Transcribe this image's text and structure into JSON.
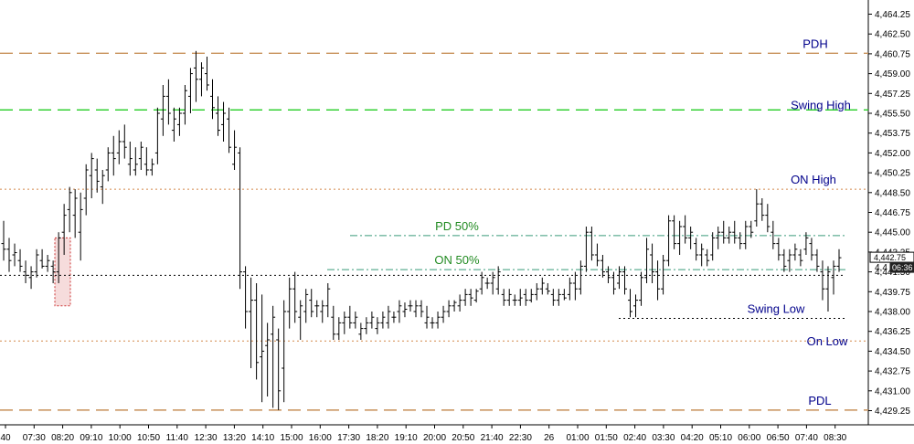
{
  "chart_data": {
    "type": "ohlc",
    "ylim": [
      4428.0,
      4465.5
    ],
    "y_ticks": [
      "4,464.25",
      "4,462.50",
      "4,460.75",
      "4,459.00",
      "4,457.25",
      "4,455.50",
      "4,453.75",
      "4,452.00",
      "4,450.25",
      "4,448.50",
      "4,446.75",
      "4,445.00",
      "4,443.25",
      "4,441.50",
      "4,439.75",
      "4,438.00",
      "4,436.25",
      "4,434.50",
      "4,432.75",
      "4,431.00",
      "4,429.25"
    ],
    "x_ticks": [
      "40",
      "07:30",
      "08:20",
      "09:10",
      "10:00",
      "10:50",
      "11:40",
      "12:30",
      "13:20",
      "14:10",
      "15:00",
      "16:00",
      "17:30",
      "18:20",
      "19:10",
      "20:00",
      "20:50",
      "21:40",
      "22:30",
      "26",
      "01:00",
      "01:50",
      "02:40",
      "03:30",
      "04:20",
      "05:10",
      "06:00",
      "06:50",
      "07:40",
      "08:30"
    ],
    "last_price_label": "4,442.75",
    "timer_label": "06:36",
    "timer_prefix": "4,4",
    "levels": [
      {
        "label": "PDH",
        "value": 4460.8,
        "color": "#c8915a",
        "style": "long-dash",
        "label_color": "#00008b"
      },
      {
        "label": "Swing High",
        "value": 4455.8,
        "color": "#22cc22",
        "style": "long-dash",
        "label_color": "#00008b"
      },
      {
        "label": "ON High",
        "value": 4448.8,
        "color": "#d4884a",
        "style": "dotted",
        "label_color": "#00008b"
      },
      {
        "label": "PD 50%",
        "value": 4444.7,
        "color": "#3a9a7a",
        "style": "dash-dot",
        "label_color": "#228b22"
      },
      {
        "label": "ON 50%",
        "value": 4441.7,
        "color": "#3a9a7a",
        "style": "dash-dot",
        "label_color": "#228b22"
      },
      {
        "label": "",
        "value": 4441.2,
        "color": "#000000",
        "style": "dotted",
        "label_color": "#000000"
      },
      {
        "label": "Swing Low",
        "value": 4437.4,
        "color": "#000000",
        "style": "dotted",
        "label_color": "#00008b"
      },
      {
        "label": "On Low",
        "value": 4435.4,
        "color": "#d4884a",
        "style": "dotted",
        "label_color": "#00008b"
      },
      {
        "label": "PDL",
        "value": 4429.3,
        "color": "#c8915a",
        "style": "long-dash",
        "label_color": "#00008b"
      }
    ],
    "bars": [
      [
        4444.0,
        4446.0,
        4442.5,
        4443.5
      ],
      [
        4443.5,
        4444.5,
        4441.5,
        4442.5
      ],
      [
        4443.0,
        4444.0,
        4442.0,
        4443.2
      ],
      [
        4442.5,
        4443.5,
        4441.5,
        4442.0
      ],
      [
        4441.5,
        4442.5,
        4440.5,
        4441.2
      ],
      [
        4441.0,
        4442.0,
        4440.0,
        4441.5
      ],
      [
        4441.5,
        4443.5,
        4441.0,
        4443.0
      ],
      [
        4442.5,
        4443.5,
        4441.8,
        4442.0
      ],
      [
        4442.0,
        4443.0,
        4441.5,
        4442.5
      ],
      [
        4442.0,
        4442.5,
        4440.5,
        4441.5
      ],
      [
        4441.5,
        4445.0,
        4440.5,
        4444.5
      ],
      [
        4445.0,
        4447.5,
        4443.0,
        4446.5
      ],
      [
        4447.0,
        4449.0,
        4445.0,
        4448.5
      ],
      [
        4446.5,
        4448.8,
        4444.5,
        4448.0
      ],
      [
        4445.0,
        4448.5,
        4442.5,
        4447.0
      ],
      [
        4448.0,
        4451.0,
        4446.5,
        4450.5
      ],
      [
        4450.0,
        4452.0,
        4448.0,
        4451.5
      ],
      [
        4450.5,
        4451.5,
        4448.5,
        4449.5
      ],
      [
        4449.0,
        4450.5,
        4447.5,
        4450.0
      ],
      [
        4450.5,
        4452.5,
        4449.5,
        4452.0
      ],
      [
        4452.0,
        4453.5,
        4450.0,
        4451.5
      ],
      [
        4452.0,
        4454.0,
        4451.0,
        4453.0
      ],
      [
        4453.0,
        4454.5,
        4451.5,
        4452.5
      ],
      [
        4451.0,
        4453.0,
        4450.0,
        4451.5
      ],
      [
        4450.5,
        4452.5,
        4450.0,
        4451.0
      ],
      [
        4451.5,
        4453.0,
        4450.5,
        4452.5
      ],
      [
        4451.0,
        4452.5,
        4450.0,
        4450.5
      ],
      [
        4450.5,
        4451.5,
        4450.0,
        4451.0
      ],
      [
        4452.0,
        4456.0,
        4451.0,
        4455.5
      ],
      [
        4455.0,
        4458.0,
        4453.5,
        4457.0
      ],
      [
        4457.0,
        4458.5,
        4454.5,
        4455.5
      ],
      [
        4454.0,
        4456.0,
        4453.0,
        4455.0
      ],
      [
        4454.5,
        4456.0,
        4453.5,
        4455.5
      ],
      [
        4455.5,
        4458.0,
        4454.5,
        4457.5
      ],
      [
        4457.0,
        4459.5,
        4455.5,
        4459.0
      ],
      [
        4459.5,
        4461.0,
        4456.5,
        4458.5
      ],
      [
        4458.5,
        4460.0,
        4457.0,
        4459.5
      ],
      [
        4459.0,
        4460.5,
        4457.5,
        4458.0
      ],
      [
        4457.0,
        4458.5,
        4455.0,
        4456.0
      ],
      [
        4455.5,
        4457.0,
        4453.5,
        4454.0
      ],
      [
        4454.5,
        4456.5,
        4453.0,
        4455.5
      ],
      [
        4455.0,
        4456.0,
        4452.0,
        4452.5
      ],
      [
        4451.0,
        4454.0,
        4450.5,
        4452.5
      ],
      [
        4452.0,
        4452.5,
        4440.0,
        4441.5
      ],
      [
        4441.5,
        4442.0,
        4436.5,
        4438.0
      ],
      [
        4438.0,
        4441.0,
        4433.0,
        4439.0
      ],
      [
        4439.0,
        4440.5,
        4432.0,
        4433.5
      ],
      [
        4434.0,
        4439.5,
        4430.0,
        4434.5
      ],
      [
        4435.0,
        4437.0,
        4430.5,
        4435.5
      ],
      [
        4436.0,
        4438.5,
        4429.5,
        4437.5
      ],
      [
        4435.5,
        4436.5,
        4429.3,
        4431.0
      ],
      [
        4433.0,
        4439.0,
        4430.0,
        4438.0
      ],
      [
        4438.0,
        4441.0,
        4436.5,
        4440.0
      ],
      [
        4440.0,
        4441.5,
        4437.0,
        4438.0
      ],
      [
        4437.5,
        4439.0,
        4435.5,
        4438.5
      ],
      [
        4438.0,
        4440.0,
        4437.0,
        4439.5
      ],
      [
        4439.0,
        4440.0,
        4437.5,
        4438.0
      ],
      [
        4438.5,
        4439.0,
        4437.5,
        4438.5
      ],
      [
        4438.0,
        4439.0,
        4437.0,
        4438.5
      ],
      [
        4438.5,
        4440.5,
        4437.5,
        4440.0
      ],
      [
        4437.5,
        4438.5,
        4435.5,
        4436.0
      ],
      [
        4436.0,
        4437.5,
        4435.5,
        4437.0
      ],
      [
        4437.0,
        4438.0,
        4436.0,
        4437.5
      ],
      [
        4437.5,
        4438.5,
        4436.5,
        4437.0
      ],
      [
        4437.0,
        4438.0,
        4436.5,
        4437.5
      ],
      [
        4436.0,
        4437.0,
        4435.5,
        4436.5
      ],
      [
        4436.5,
        4437.5,
        4436.0,
        4437.0
      ],
      [
        4437.0,
        4438.0,
        4436.5,
        4437.5
      ],
      [
        4436.5,
        4437.5,
        4436.0,
        4437.0
      ],
      [
        4437.0,
        4438.0,
        4436.5,
        4437.5
      ],
      [
        4437.0,
        4438.5,
        4436.5,
        4438.0
      ],
      [
        4437.5,
        4438.0,
        4437.0,
        4437.5
      ],
      [
        4438.0,
        4439.0,
        4437.0,
        4438.5
      ],
      [
        4438.0,
        4438.8,
        4437.5,
        4438.2
      ],
      [
        4438.5,
        4439.0,
        4438.0,
        4438.5
      ],
      [
        4438.0,
        4439.0,
        4437.5,
        4438.5
      ],
      [
        4438.5,
        4439.0,
        4437.5,
        4438.0
      ],
      [
        4437.0,
        4438.5,
        4436.5,
        4437.5
      ],
      [
        4437.0,
        4437.5,
        4436.5,
        4437.0
      ],
      [
        4437.0,
        4438.0,
        4436.5,
        4437.5
      ],
      [
        4437.5,
        4438.5,
        4437.0,
        4438.0
      ],
      [
        4438.0,
        4439.0,
        4437.5,
        4438.5
      ],
      [
        4438.5,
        4439.0,
        4438.0,
        4438.8
      ],
      [
        4438.5,
        4439.5,
        4438.0,
        4439.0
      ],
      [
        4439.0,
        4440.0,
        4438.5,
        4439.5
      ],
      [
        4439.5,
        4440.0,
        4438.5,
        4439.2
      ],
      [
        4439.0,
        4440.0,
        4438.8,
        4439.8
      ],
      [
        4440.0,
        4441.5,
        4439.5,
        4441.0
      ],
      [
        4440.5,
        4441.0,
        4440.0,
        4440.5
      ],
      [
        4440.5,
        4441.5,
        4439.5,
        4441.0
      ],
      [
        4440.0,
        4442.0,
        4439.5,
        4441.5
      ],
      [
        4439.5,
        4440.0,
        4438.5,
        4439.0
      ],
      [
        4439.0,
        4440.0,
        4438.5,
        4439.5
      ],
      [
        4439.0,
        4439.5,
        4438.5,
        4439.0
      ],
      [
        4439.0,
        4440.0,
        4438.5,
        4439.2
      ],
      [
        4439.5,
        4440.0,
        4438.5,
        4439.0
      ],
      [
        4439.0,
        4440.0,
        4438.8,
        4439.5
      ],
      [
        4439.5,
        4440.5,
        4439.0,
        4440.0
      ],
      [
        4440.0,
        4441.0,
        4439.5,
        4440.5
      ],
      [
        4440.0,
        4440.5,
        4439.5,
        4439.8
      ],
      [
        4439.5,
        4440.0,
        4438.5,
        4439.0
      ],
      [
        4439.0,
        4440.0,
        4438.5,
        4439.5
      ],
      [
        4439.5,
        4440.0,
        4439.0,
        4439.2
      ],
      [
        4439.5,
        4441.0,
        4439.0,
        4440.5
      ],
      [
        4440.5,
        4441.5,
        4439.0,
        4440.0
      ],
      [
        4440.0,
        4442.5,
        4439.5,
        4442.0
      ],
      [
        4442.0,
        4445.5,
        4441.5,
        4445.0
      ],
      [
        4445.0,
        4445.5,
        4442.5,
        4443.0
      ],
      [
        4443.0,
        4444.0,
        4442.0,
        4442.5
      ],
      [
        4442.5,
        4443.0,
        4441.0,
        4441.5
      ],
      [
        4441.5,
        4442.0,
        4440.5,
        4441.0
      ],
      [
        4441.0,
        4441.5,
        4439.5,
        4440.0
      ],
      [
        4440.5,
        4442.0,
        4440.0,
        4441.5
      ],
      [
        4441.5,
        4442.0,
        4439.5,
        4440.0
      ],
      [
        4439.0,
        4440.0,
        4437.5,
        4438.0
      ],
      [
        4438.5,
        4439.5,
        4437.5,
        4439.0
      ],
      [
        4439.0,
        4441.5,
        4438.5,
        4441.0
      ],
      [
        4441.0,
        4444.5,
        4440.5,
        4443.5
      ],
      [
        4443.0,
        4444.0,
        4440.5,
        4441.5
      ],
      [
        4441.5,
        4442.5,
        4439.0,
        4440.0
      ],
      [
        4440.0,
        4443.0,
        4439.5,
        4442.5
      ],
      [
        4442.5,
        4446.5,
        4442.0,
        4446.0
      ],
      [
        4446.0,
        4446.5,
        4443.5,
        4444.0
      ],
      [
        4444.0,
        4446.0,
        4443.0,
        4445.5
      ],
      [
        4445.5,
        4446.5,
        4444.0,
        4444.5
      ],
      [
        4444.5,
        4445.5,
        4443.5,
        4445.0
      ],
      [
        4444.0,
        4444.5,
        4442.5,
        4443.0
      ],
      [
        4443.0,
        4444.0,
        4442.0,
        4443.5
      ],
      [
        4443.0,
        4443.5,
        4442.0,
        4442.5
      ],
      [
        4443.0,
        4445.0,
        4442.5,
        4444.5
      ],
      [
        4444.5,
        4445.5,
        4443.5,
        4445.0
      ],
      [
        4445.0,
        4446.0,
        4444.0,
        4444.5
      ],
      [
        4444.5,
        4445.5,
        4444.0,
        4445.0
      ],
      [
        4445.0,
        4446.0,
        4444.0,
        4444.5
      ],
      [
        4444.5,
        4445.0,
        4443.5,
        4444.0
      ],
      [
        4444.0,
        4446.0,
        4443.5,
        4445.5
      ],
      [
        4445.5,
        4446.0,
        4444.5,
        4445.0
      ],
      [
        4446.0,
        4448.8,
        4445.5,
        4447.5
      ],
      [
        4447.5,
        4448.0,
        4446.0,
        4446.5
      ],
      [
        4446.5,
        4447.5,
        4445.0,
        4445.5
      ],
      [
        4445.0,
        4446.0,
        4443.5,
        4444.0
      ],
      [
        4444.0,
        4444.5,
        4442.5,
        4443.0
      ],
      [
        4443.0,
        4443.5,
        4441.5,
        4442.0
      ],
      [
        4442.5,
        4443.5,
        4441.5,
        4443.0
      ],
      [
        4443.0,
        4444.0,
        4442.5,
        4443.5
      ],
      [
        4443.0,
        4443.5,
        4442.0,
        4442.5
      ],
      [
        4443.5,
        4445.0,
        4443.0,
        4444.5
      ],
      [
        4444.0,
        4444.5,
        4442.5,
        4443.0
      ],
      [
        4443.0,
        4443.5,
        4441.5,
        4442.0
      ],
      [
        4441.5,
        4442.5,
        4439.0,
        4440.0
      ],
      [
        4440.0,
        4442.0,
        4438.0,
        4441.5
      ],
      [
        4441.0,
        4442.5,
        4439.5,
        4442.0
      ],
      [
        4442.0,
        4443.5,
        4441.5,
        4442.75
      ]
    ]
  }
}
